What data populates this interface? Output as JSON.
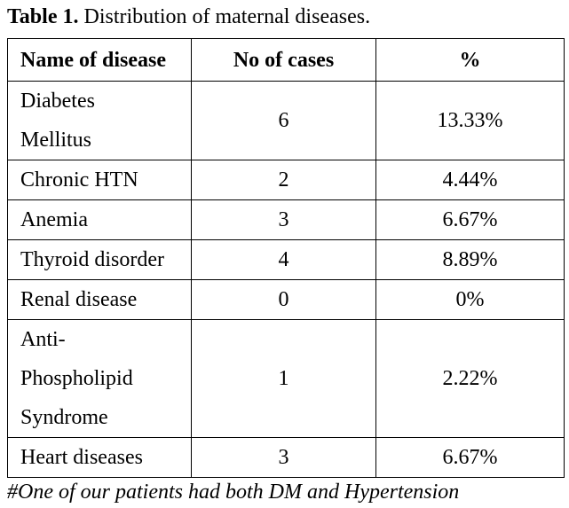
{
  "caption": {
    "label": "Table 1.",
    "text": " Distribution of maternal diseases."
  },
  "table": {
    "headers": [
      "Name of disease",
      "No of cases",
      "%"
    ],
    "rows": [
      {
        "name_lines": [
          "Diabetes",
          "Mellitus"
        ],
        "cases": "6",
        "percent": "13.33%"
      },
      {
        "name_lines": [
          "Chronic HTN"
        ],
        "cases": "2",
        "percent": "4.44%"
      },
      {
        "name_lines": [
          "Anemia"
        ],
        "cases": "3",
        "percent": "6.67%"
      },
      {
        "name_lines": [
          "Thyroid disorder"
        ],
        "cases": "4",
        "percent": "8.89%"
      },
      {
        "name_lines": [
          "Renal disease"
        ],
        "cases": "0",
        "percent": "0%"
      },
      {
        "name_lines": [
          "Anti-",
          "Phospholipid",
          "Syndrome"
        ],
        "cases": "1",
        "percent": "2.22%"
      },
      {
        "name_lines": [
          "Heart diseases"
        ],
        "cases": "3",
        "percent": "6.67%"
      }
    ]
  },
  "footnote": "#One of our patients had both DM and Hypertension"
}
